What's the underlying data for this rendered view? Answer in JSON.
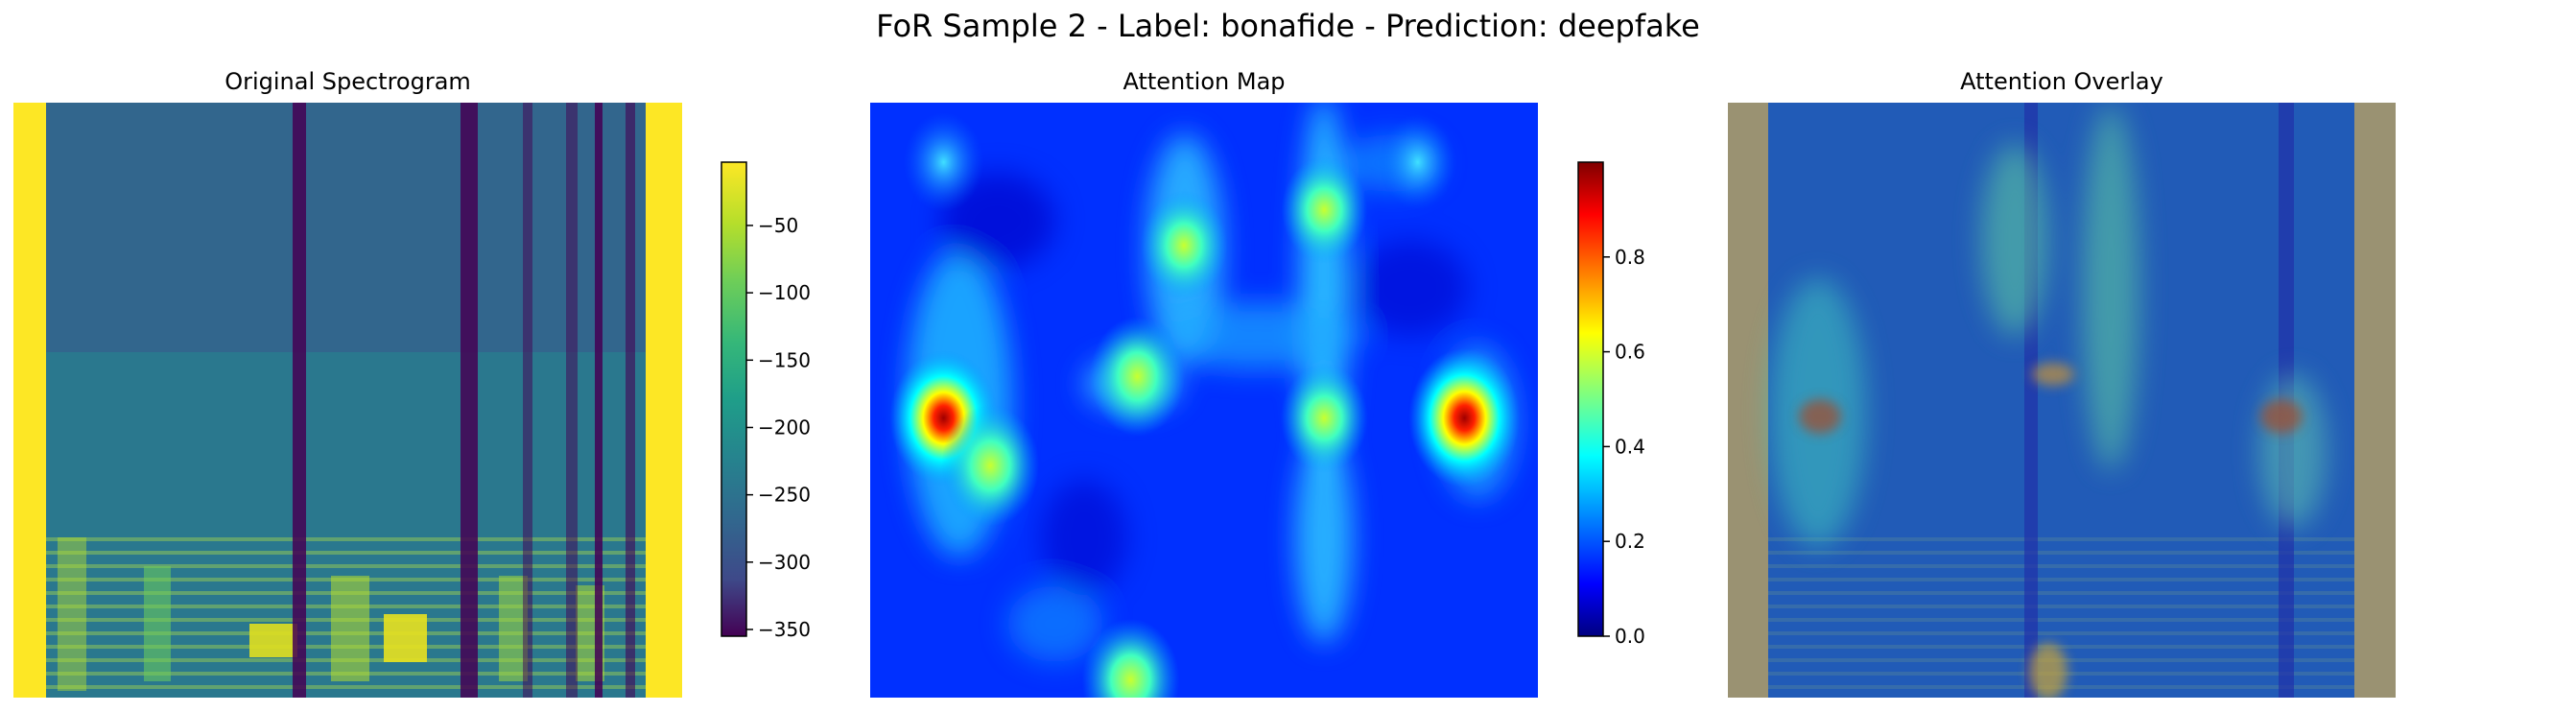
{
  "figure": {
    "suptitle": "FoR Sample 2 - Label: bonafide - Prediction: deepfake"
  },
  "panels": [
    {
      "title": "Original Spectrogram",
      "colormap": "viridis"
    },
    {
      "title": "Attention Map",
      "colormap": "jet"
    },
    {
      "title": "Attention Overlay",
      "colormap": "jet over viridis"
    }
  ],
  "chart_data": [
    {
      "type": "heatmap",
      "title": "Original Spectrogram",
      "colormap": "viridis",
      "axes": "off",
      "colorbar": {
        "range": [
          -355,
          -3
        ],
        "ticks": [
          -50,
          -100,
          -150,
          -200,
          -250,
          -300,
          -350
        ],
        "tick_labels": [
          "−50",
          "−100",
          "−150",
          "−200",
          "−250",
          "−300",
          "−350"
        ]
      },
      "vertical_bands": [
        {
          "position": 0.03,
          "level": "high"
        },
        {
          "position": 0.97,
          "level": "high"
        },
        {
          "position": 0.47,
          "level": "low"
        },
        {
          "position": 0.68,
          "level": "low"
        },
        {
          "position": 0.94,
          "level": "low"
        }
      ]
    },
    {
      "type": "heatmap",
      "title": "Attention Map",
      "colormap": "jet",
      "axes": "off",
      "colorbar": {
        "range": [
          0,
          1
        ],
        "ticks": [
          0.0,
          0.2,
          0.4,
          0.6,
          0.8
        ],
        "tick_labels": [
          "0.0",
          "0.2",
          "0.4",
          "0.6",
          "0.8"
        ]
      },
      "hotspots": [
        {
          "x": 0.11,
          "y": 0.53,
          "value": 0.9
        },
        {
          "x": 0.89,
          "y": 0.53,
          "value": 0.95
        },
        {
          "x": 0.18,
          "y": 0.61,
          "value": 0.75
        },
        {
          "x": 0.4,
          "y": 0.46,
          "value": 0.72
        },
        {
          "x": 0.68,
          "y": 0.53,
          "value": 0.6
        },
        {
          "x": 0.68,
          "y": 0.18,
          "value": 0.58
        },
        {
          "x": 0.47,
          "y": 0.24,
          "value": 0.6
        },
        {
          "x": 0.39,
          "y": 0.97,
          "value": 0.75
        },
        {
          "x": 0.11,
          "y": 0.1,
          "value": 0.5
        },
        {
          "x": 0.82,
          "y": 0.1,
          "value": 0.45
        }
      ]
    },
    {
      "type": "heatmap",
      "title": "Attention Overlay",
      "colormap": "jet over viridis",
      "axes": "off"
    }
  ]
}
